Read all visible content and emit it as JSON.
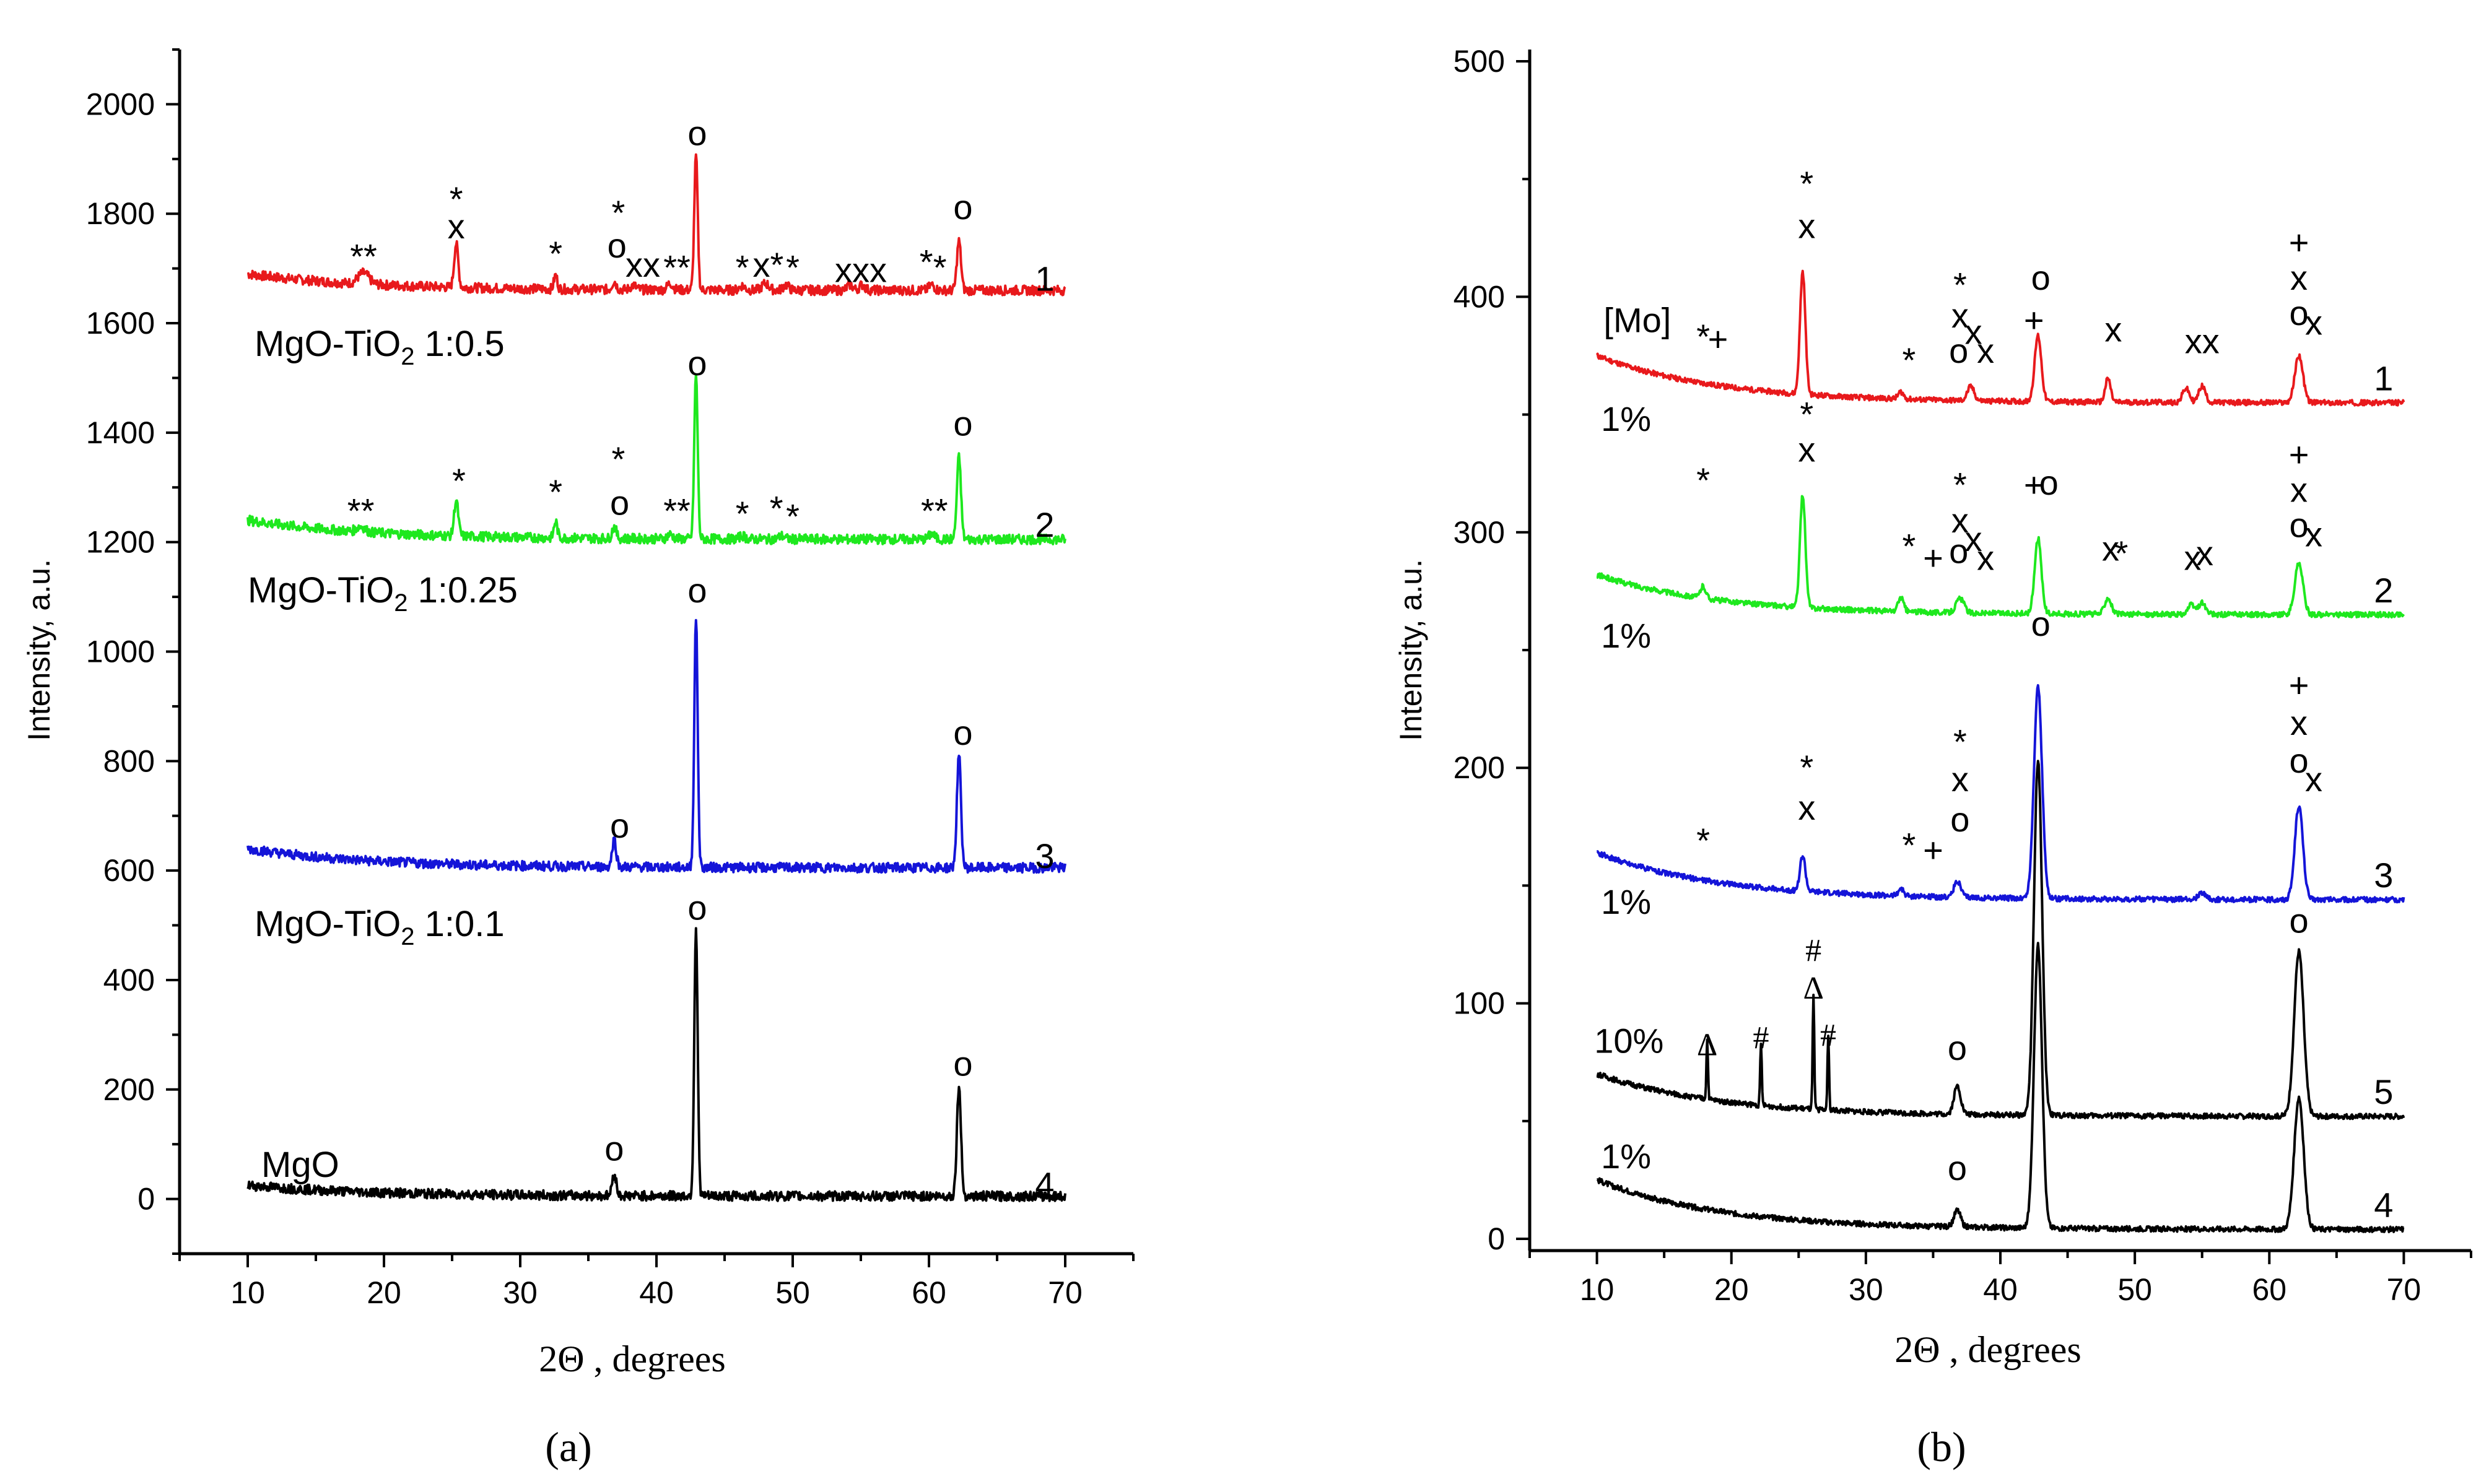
{
  "chart_data": [
    {
      "panel": "(a)",
      "type": "line",
      "xlabel": "2Θ , degrees",
      "ylabel": "Intensity, a.u.",
      "xlim": [
        5,
        75
      ],
      "ylim": [
        -100,
        2100
      ],
      "xticks": [
        10,
        20,
        30,
        40,
        50,
        60,
        70
      ],
      "yticks": [
        0,
        200,
        400,
        600,
        800,
        1000,
        1200,
        1400,
        1600,
        1800,
        2000
      ],
      "series": [
        {
          "name": "1",
          "sample": "MgO-TiO₂ 1:0.5",
          "color": "#e8191c",
          "baseline": 1660,
          "baseline_start": 1690,
          "peaks": [
            [
              18.5,
              20,
              0.8
            ],
            [
              25.3,
              80,
              0.3
            ],
            [
              32.6,
              25,
              0.25
            ],
            [
              36.9,
              15,
              0.3
            ],
            [
              38.3,
              8,
              0.4
            ],
            [
              41,
              12,
              0.4
            ],
            [
              42.9,
              245,
              0.25
            ],
            [
              46.3,
              8,
              0.4
            ],
            [
              48,
              12,
              0.5
            ],
            [
              49.5,
              10,
              0.4
            ],
            [
              54.2,
              10,
              0.4
            ],
            [
              55.1,
              10,
              0.4
            ],
            [
              60.2,
              10,
              0.4
            ],
            [
              62.2,
              90,
              0.3
            ]
          ]
        },
        {
          "name": "2",
          "sample": "MgO-TiO₂ 1:0.25",
          "color": "#1ee81e",
          "baseline": 1205,
          "baseline_start": 1240,
          "peaks": [
            [
              18.3,
              10,
              0.6
            ],
            [
              25.3,
              65,
              0.3
            ],
            [
              32.6,
              30,
              0.25
            ],
            [
              36.9,
              22,
              0.3
            ],
            [
              41,
              8,
              0.4
            ],
            [
              42.9,
              300,
              0.25
            ],
            [
              46.3,
              6,
              0.4
            ],
            [
              49.2,
              6,
              0.4
            ],
            [
              60.2,
              10,
              0.4
            ],
            [
              62.2,
              150,
              0.3
            ]
          ]
        },
        {
          "name": "3",
          "sample": "MgO-TiO₂ 1:0.1",
          "color": "#1414d8",
          "baseline": 605,
          "baseline_start": 640,
          "peaks": [
            [
              36.9,
              50,
              0.3
            ],
            [
              42.9,
              455,
              0.25
            ],
            [
              62.2,
              205,
              0.3
            ]
          ]
        },
        {
          "name": "4",
          "sample": "MgO",
          "color": "#000000",
          "baseline": 5,
          "baseline_start": 25,
          "peaks": [
            [
              36.9,
              40,
              0.3
            ],
            [
              42.9,
              490,
              0.25
            ],
            [
              62.2,
              200,
              0.3
            ]
          ]
        }
      ],
      "annotations": [
        {
          "text": "**",
          "x": 18.5,
          "y": 1700
        },
        {
          "text": "*",
          "x": 25.3,
          "y": 1805
        },
        {
          "text": "x",
          "x": 25.3,
          "y": 1755
        },
        {
          "text": "*",
          "x": 32.6,
          "y": 1705
        },
        {
          "text": "*",
          "x": 37.2,
          "y": 1780
        },
        {
          "text": "o",
          "x": 37.1,
          "y": 1720
        },
        {
          "text": "xx",
          "x": 39.0,
          "y": 1685
        },
        {
          "text": "**",
          "x": 41.5,
          "y": 1680
        },
        {
          "text": "o",
          "x": 43.0,
          "y": 1925
        },
        {
          "text": "*",
          "x": 46.3,
          "y": 1680
        },
        {
          "text": "x*",
          "x": 48.2,
          "y": 1685
        },
        {
          "text": "*",
          "x": 50.0,
          "y": 1680
        },
        {
          "text": "xxx",
          "x": 55.0,
          "y": 1675
        },
        {
          "text": "*",
          "x": 59.8,
          "y": 1690
        },
        {
          "text": "*",
          "x": 60.8,
          "y": 1680
        },
        {
          "text": "o",
          "x": 62.5,
          "y": 1790
        },
        {
          "text": "**",
          "x": 18.3,
          "y": 1235
        },
        {
          "text": "*",
          "x": 25.5,
          "y": 1290
        },
        {
          "text": "*",
          "x": 32.6,
          "y": 1270
        },
        {
          "text": "*",
          "x": 37.2,
          "y": 1330
        },
        {
          "text": "o",
          "x": 37.3,
          "y": 1250
        },
        {
          "text": "**",
          "x": 41.5,
          "y": 1235
        },
        {
          "text": "o",
          "x": 43.0,
          "y": 1505
        },
        {
          "text": "*",
          "x": 46.3,
          "y": 1230
        },
        {
          "text": "*",
          "x": 48.8,
          "y": 1240
        },
        {
          "text": "*",
          "x": 50.0,
          "y": 1225
        },
        {
          "text": "**",
          "x": 60.4,
          "y": 1235
        },
        {
          "text": "o",
          "x": 62.5,
          "y": 1395
        },
        {
          "text": "o",
          "x": 37.3,
          "y": 660
        },
        {
          "text": "o",
          "x": 43.0,
          "y": 1090
        },
        {
          "text": "o",
          "x": 62.5,
          "y": 830
        },
        {
          "text": "o",
          "x": 36.9,
          "y": 70
        },
        {
          "text": "o",
          "x": 43.0,
          "y": 510
        },
        {
          "text": "o",
          "x": 62.5,
          "y": 225
        }
      ],
      "curve_numbers": [
        {
          "text": "1",
          "x": 68.5,
          "y": 1680
        },
        {
          "text": "2",
          "x": 68.5,
          "y": 1230
        },
        {
          "text": "3",
          "x": 68.5,
          "y": 625
        },
        {
          "text": "4",
          "x": 68.5,
          "y": 25
        }
      ],
      "sample_labels": [
        {
          "text": "MgO-TiO",
          "sub": "2",
          "suffix": " 1:0.5",
          "x": 10.5,
          "y": 1540
        },
        {
          "text": "MgO-TiO",
          "sub": "2",
          "suffix": " 1:0.25",
          "x": 10.0,
          "y": 1090
        },
        {
          "text": "MgO-TiO",
          "sub": "2",
          "suffix": " 1:0.1",
          "x": 10.5,
          "y": 480
        },
        {
          "text": "MgO",
          "sub": "",
          "suffix": "",
          "x": 11.0,
          "y": 40
        }
      ]
    },
    {
      "panel": "(b)",
      "type": "line",
      "xlabel": "2Θ , degrees",
      "ylabel": "Intensity, a.u.",
      "xlim": [
        5,
        75
      ],
      "ylim": [
        -5,
        505
      ],
      "xticks": [
        10,
        20,
        30,
        40,
        50,
        60,
        70
      ],
      "yticks": [
        0,
        100,
        200,
        300,
        400,
        500
      ],
      "series": [
        {
          "name": "1",
          "percent": "1%",
          "color": "#e8191c",
          "baseline": 355,
          "baseline_start": 375,
          "peaks": [
            [
              25.3,
              52,
              0.4
            ],
            [
              32.6,
              3,
              0.4
            ],
            [
              37.8,
              6,
              0.5
            ],
            [
              42.8,
              28,
              0.5
            ],
            [
              48,
              10,
              0.4
            ],
            [
              53.8,
              6,
              0.5
            ],
            [
              55,
              7,
              0.5
            ],
            [
              62.2,
              20,
              0.6
            ]
          ]
        },
        {
          "name": "2",
          "percent": "1%",
          "color": "#1ee81e",
          "baseline": 265,
          "baseline_start": 282,
          "peaks": [
            [
              17.9,
              5,
              0.4
            ],
            [
              25.3,
              48,
              0.4
            ],
            [
              32.6,
              6,
              0.4
            ],
            [
              37,
              6,
              0.6
            ],
            [
              42.8,
              32,
              0.5
            ],
            [
              48,
              7,
              0.5
            ],
            [
              54.2,
              4,
              0.5
            ],
            [
              55,
              5,
              0.5
            ],
            [
              62.2,
              22,
              0.6
            ]
          ]
        },
        {
          "name": "3",
          "percent": "1%",
          "color": "#1414d8",
          "baseline": 144,
          "baseline_start": 164,
          "peaks": [
            [
              25.3,
              15,
              0.4
            ],
            [
              32.6,
              3,
              0.4
            ],
            [
              36.8,
              7,
              0.5
            ],
            [
              42.8,
              90,
              0.6
            ],
            [
              55,
              3,
              0.5
            ],
            [
              62.2,
              40,
              0.6
            ]
          ]
        },
        {
          "name": "5",
          "percent": "10%",
          "color": "#000000",
          "baseline": 52,
          "baseline_start": 70,
          "peaks": [
            [
              18.2,
              25,
              0.12
            ],
            [
              22.2,
              26,
              0.12
            ],
            [
              26.1,
              48,
              0.12
            ],
            [
              27.2,
              32,
              0.12
            ],
            [
              36.8,
              12,
              0.5
            ],
            [
              42.8,
              150,
              0.6
            ],
            [
              62.2,
              70,
              0.7
            ]
          ]
        },
        {
          "name": "4",
          "percent": "1%",
          "color": "#000000",
          "baseline": 4,
          "baseline_start": 25,
          "peaks": [
            [
              36.8,
              7,
              0.5
            ],
            [
              42.8,
              120,
              0.6
            ],
            [
              62.2,
              56,
              0.7
            ]
          ]
        }
      ],
      "annotations": [
        {
          "text": "[Mo]",
          "x": 10.5,
          "y": 385
        },
        {
          "text": "*",
          "x": 17.9,
          "y": 378
        },
        {
          "text": "+",
          "x": 19.0,
          "y": 377
        },
        {
          "text": "*",
          "x": 25.6,
          "y": 443
        },
        {
          "text": "x",
          "x": 25.6,
          "y": 425
        },
        {
          "text": "*",
          "x": 33.2,
          "y": 368
        },
        {
          "text": "*",
          "x": 37.0,
          "y": 400
        },
        {
          "text": "x",
          "x": 37.0,
          "y": 387
        },
        {
          "text": "o",
          "x": 36.9,
          "y": 372
        },
        {
          "text": "x",
          "x": 38.0,
          "y": 380
        },
        {
          "text": "x",
          "x": 38.9,
          "y": 372
        },
        {
          "text": "+",
          "x": 42.5,
          "y": 385
        },
        {
          "text": "o",
          "x": 43.0,
          "y": 403
        },
        {
          "text": "x",
          "x": 48.4,
          "y": 381
        },
        {
          "text": "xx",
          "x": 55.0,
          "y": 376
        },
        {
          "text": "+",
          "x": 62.2,
          "y": 418
        },
        {
          "text": "x",
          "x": 62.2,
          "y": 403
        },
        {
          "text": "o",
          "x": 62.2,
          "y": 388
        },
        {
          "text": "x",
          "x": 63.3,
          "y": 384
        },
        {
          "text": "1%",
          "x": 10.3,
          "y": 343
        },
        {
          "text": "*",
          "x": 17.9,
          "y": 317
        },
        {
          "text": "*",
          "x": 25.6,
          "y": 345
        },
        {
          "text": "x",
          "x": 25.6,
          "y": 330
        },
        {
          "text": "*",
          "x": 33.2,
          "y": 289
        },
        {
          "text": "+",
          "x": 35.0,
          "y": 284
        },
        {
          "text": "*",
          "x": 37.0,
          "y": 315
        },
        {
          "text": "x",
          "x": 37.0,
          "y": 300
        },
        {
          "text": "o",
          "x": 36.9,
          "y": 287
        },
        {
          "text": "x",
          "x": 38.0,
          "y": 292
        },
        {
          "text": "x",
          "x": 38.9,
          "y": 284
        },
        {
          "text": "+",
          "x": 42.5,
          "y": 315
        },
        {
          "text": "o",
          "x": 43.6,
          "y": 316
        },
        {
          "text": "x",
          "x": 48.2,
          "y": 288
        },
        {
          "text": "*",
          "x": 49.0,
          "y": 286
        },
        {
          "text": "x",
          "x": 54.3,
          "y": 284
        },
        {
          "text": "x",
          "x": 55.2,
          "y": 286
        },
        {
          "text": "+",
          "x": 62.2,
          "y": 328
        },
        {
          "text": "x",
          "x": 62.2,
          "y": 313
        },
        {
          "text": "o",
          "x": 62.2,
          "y": 298
        },
        {
          "text": "x",
          "x": 63.3,
          "y": 294
        },
        {
          "text": "1%",
          "x": 10.3,
          "y": 251
        },
        {
          "text": "*",
          "x": 17.9,
          "y": 164
        },
        {
          "text": "*",
          "x": 25.6,
          "y": 195
        },
        {
          "text": "x",
          "x": 25.6,
          "y": 178
        },
        {
          "text": "*",
          "x": 33.2,
          "y": 162
        },
        {
          "text": "+",
          "x": 35.0,
          "y": 160
        },
        {
          "text": "*",
          "x": 37.0,
          "y": 206
        },
        {
          "text": "x",
          "x": 37.0,
          "y": 190
        },
        {
          "text": "o",
          "x": 37.0,
          "y": 173
        },
        {
          "text": "o",
          "x": 43.0,
          "y": 256
        },
        {
          "text": "+",
          "x": 62.2,
          "y": 230
        },
        {
          "text": "x",
          "x": 62.2,
          "y": 214
        },
        {
          "text": "o",
          "x": 62.2,
          "y": 198
        },
        {
          "text": "x",
          "x": 63.3,
          "y": 190
        },
        {
          "text": "1%",
          "x": 10.3,
          "y": 138
        },
        {
          "text": "10%",
          "x": 9.8,
          "y": 79
        },
        {
          "text": "Δ",
          "x": 18.2,
          "y": 78
        },
        {
          "text": "#",
          "x": 22.2,
          "y": 81
        },
        {
          "text": "#",
          "x": 26.1,
          "y": 118
        },
        {
          "text": "Δ",
          "x": 26.1,
          "y": 102
        },
        {
          "text": "#",
          "x": 27.2,
          "y": 82
        },
        {
          "text": "o",
          "x": 36.8,
          "y": 76
        },
        {
          "text": "o",
          "x": 62.2,
          "y": 130
        },
        {
          "text": "1%",
          "x": 10.3,
          "y": 30
        },
        {
          "text": "o",
          "x": 36.8,
          "y": 25
        }
      ],
      "curve_numbers": [
        {
          "text": "1",
          "x": 68.5,
          "y": 365
        },
        {
          "text": "2",
          "x": 68.5,
          "y": 275
        },
        {
          "text": "3",
          "x": 68.5,
          "y": 154
        },
        {
          "text": "5",
          "x": 68.5,
          "y": 62
        },
        {
          "text": "4",
          "x": 68.5,
          "y": 14
        }
      ]
    }
  ]
}
